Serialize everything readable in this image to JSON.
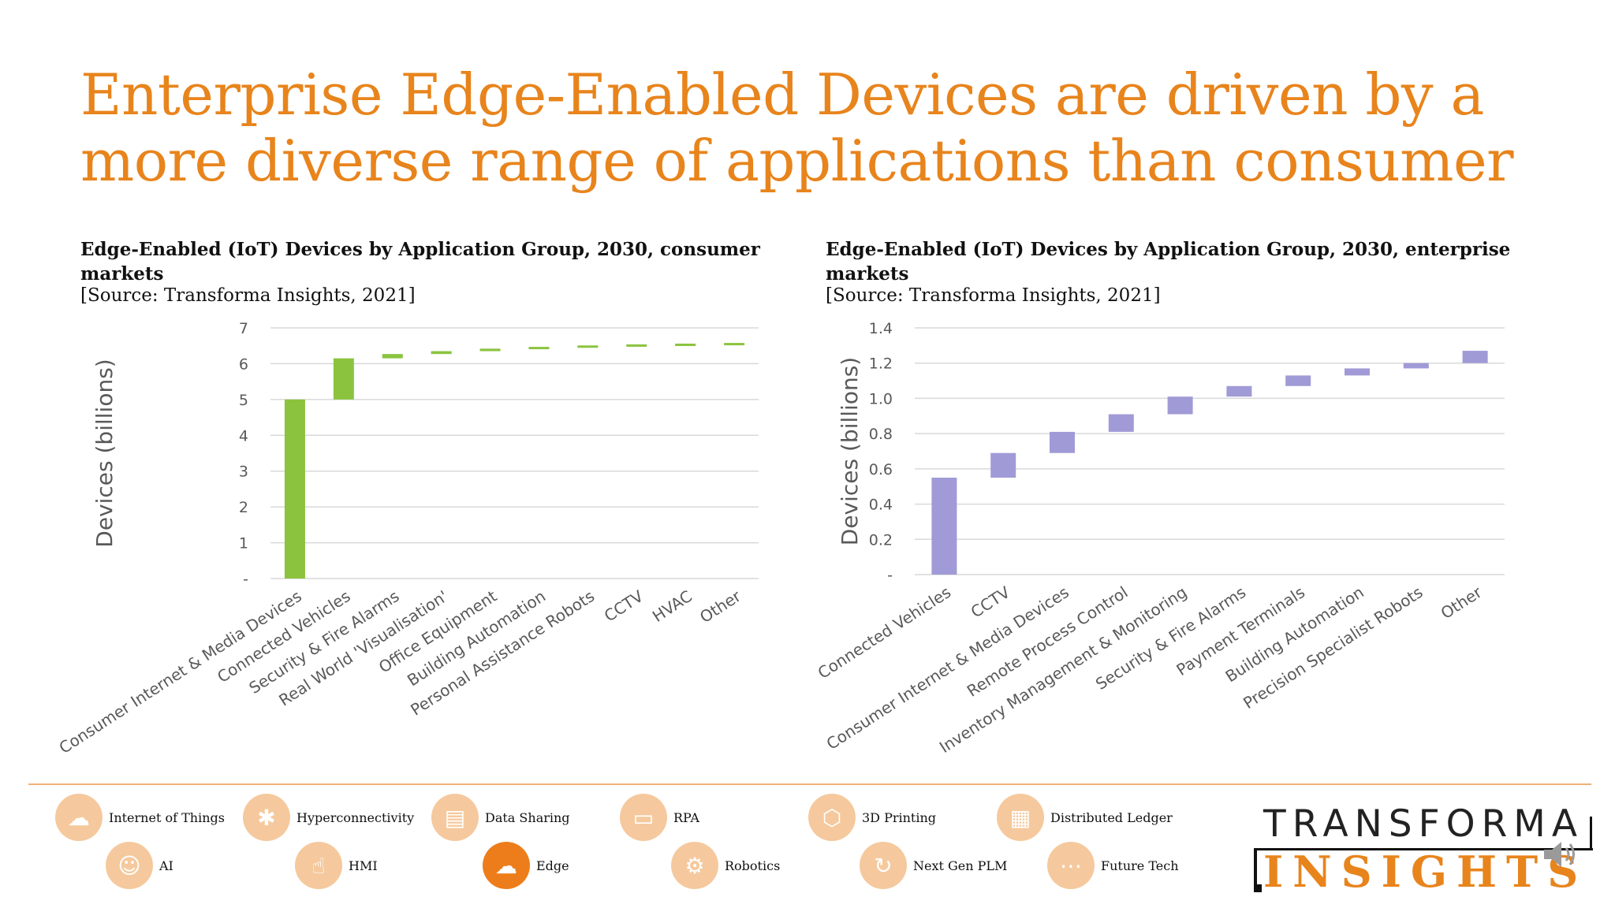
{
  "title": {
    "line1": "Enterprise Edge-Enabled Devices are driven by a",
    "line2": "more diverse range of applications than consumer"
  },
  "chart_data": [
    {
      "type": "bar",
      "style": "waterfall",
      "title": "Edge-Enabled (IoT) Devices by Application Group, 2030, consumer markets",
      "source": "[Source: Transforma Insights, 2021]",
      "ylabel": "Devices (billions)",
      "xlabel": "",
      "ylim": [
        0,
        7
      ],
      "yticks": [
        0,
        1,
        2,
        3,
        4,
        5,
        6,
        7
      ],
      "ytick_labels": [
        "-",
        "1",
        "2",
        "3",
        "4",
        "5",
        "6",
        "7"
      ],
      "grid": true,
      "color": "#8bc33f",
      "categories": [
        "Consumer Internet & Media Devices",
        "Connected Vehicles",
        "Security & Fire Alarms",
        "Real World 'Visualisation'",
        "Office Equipment",
        "Building Automation",
        "Personal Assistance Robots",
        "CCTV",
        "HVAC",
        "Other"
      ],
      "values": [
        5.0,
        1.15,
        0.12,
        0.08,
        0.07,
        0.05,
        0.04,
        0.03,
        0.02,
        0.02
      ]
    },
    {
      "type": "bar",
      "style": "waterfall",
      "title": "Edge-Enabled (IoT) Devices by Application Group, 2030, enterprise markets",
      "source": "[Source: Transforma Insights, 2021]",
      "ylabel": "Devices (billions)",
      "xlabel": "",
      "ylim": [
        0,
        1.4
      ],
      "yticks": [
        0,
        0.2,
        0.4,
        0.6,
        0.8,
        1.0,
        1.2,
        1.4
      ],
      "ytick_labels": [
        "-",
        "0.2",
        "0.4",
        "0.6",
        "0.8",
        "1.0",
        "1.2",
        "1.4"
      ],
      "grid": true,
      "color": "#a09bd6",
      "categories": [
        "Connected Vehicles",
        "CCTV",
        "Consumer Internet & Media Devices",
        "Remote Process Control",
        "Inventory Management & Monitoring",
        "Security & Fire Alarms",
        "Payment Terminals",
        "Building Automation",
        "Precision Specialist Robots",
        "Other"
      ],
      "values": [
        0.55,
        0.14,
        0.12,
        0.1,
        0.1,
        0.06,
        0.06,
        0.04,
        0.03,
        0.07
      ]
    }
  ],
  "nav": [
    {
      "label": "Internet of Things",
      "icon": "cloud-network-icon",
      "glyph": "☁"
    },
    {
      "label": "Hyperconnectivity",
      "icon": "network-hub-icon",
      "glyph": "✱"
    },
    {
      "label": "Data Sharing",
      "icon": "data-table-icon",
      "glyph": "▤"
    },
    {
      "label": "RPA",
      "icon": "screen-robot-icon",
      "glyph": "▭"
    },
    {
      "label": "3D Printing",
      "icon": "printer-cube-icon",
      "glyph": "⬡"
    },
    {
      "label": "Distributed Ledger",
      "icon": "ledger-icon",
      "glyph": "▦"
    },
    {
      "label": "AI",
      "icon": "brain-head-icon",
      "glyph": "☺"
    },
    {
      "label": "HMI",
      "icon": "touch-hand-icon",
      "glyph": "☝"
    },
    {
      "label": "Edge",
      "icon": "edge-cloud-icon",
      "glyph": "☁"
    },
    {
      "label": "Robotics",
      "icon": "robot-arm-icon",
      "glyph": "⚙"
    },
    {
      "label": "Next Gen PLM",
      "icon": "cycle-arrows-icon",
      "glyph": "↻"
    },
    {
      "label": "Future Tech",
      "icon": "circuit-icon",
      "glyph": "⋯"
    }
  ],
  "logo": {
    "top": "TRANSFORMA",
    "bottom": "INSIGHTS"
  }
}
